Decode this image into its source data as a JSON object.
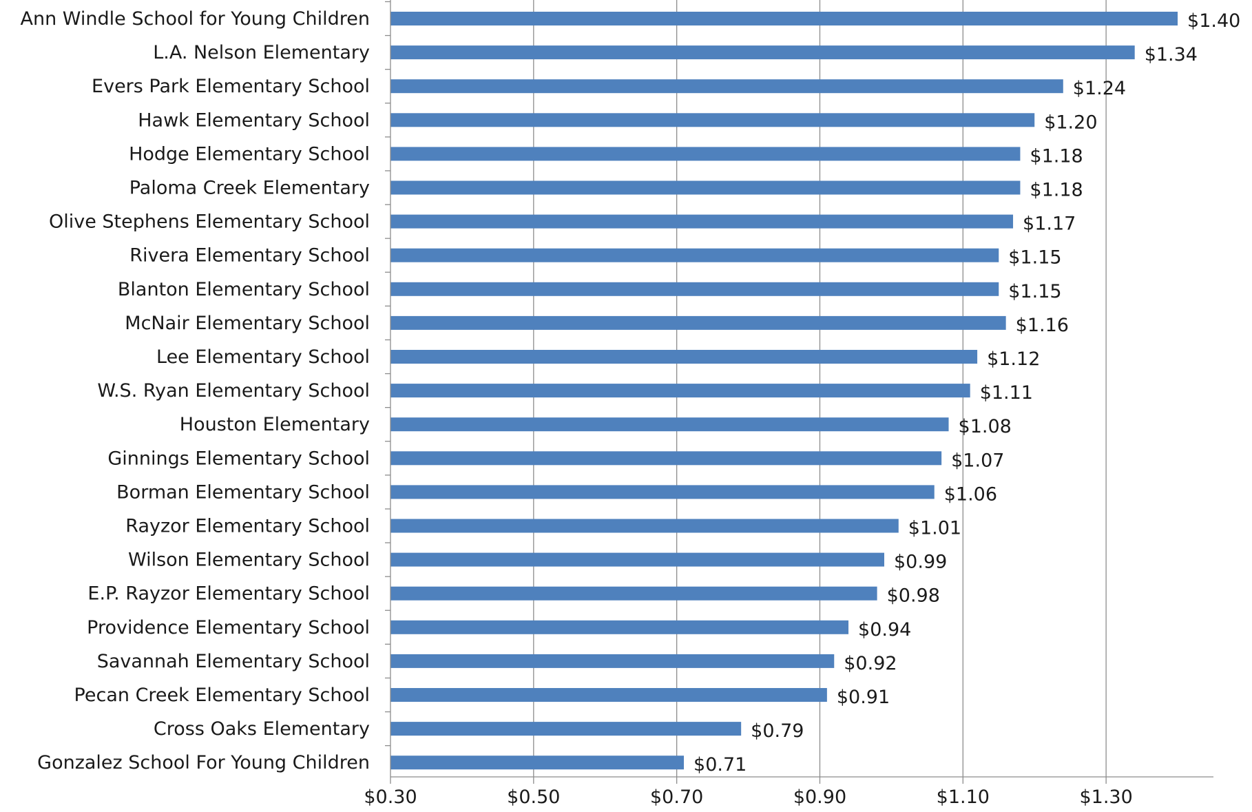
{
  "chart_data": {
    "type": "bar",
    "orientation": "horizontal",
    "title": "",
    "xlabel": "",
    "ylabel": "",
    "categories": [
      "Ann Windle School for Young Children",
      "L.A. Nelson Elementary",
      "Evers Park Elementary School",
      "Hawk Elementary School",
      "Hodge Elementary School",
      "Paloma Creek Elementary",
      "Olive Stephens Elementary School",
      "Rivera Elementary School",
      "Blanton Elementary School",
      "McNair Elementary School",
      "Lee Elementary School",
      "W.S. Ryan Elementary School",
      "Houston Elementary",
      "Ginnings Elementary School",
      "Borman Elementary School",
      "Rayzor Elementary School",
      "Wilson Elementary School",
      "E.P. Rayzor Elementary School",
      "Providence Elementary School",
      "Savannah Elementary School",
      "Pecan Creek Elementary School",
      "Cross Oaks Elementary",
      "Gonzalez School For Young Children"
    ],
    "values": [
      1.4,
      1.34,
      1.24,
      1.2,
      1.18,
      1.18,
      1.17,
      1.15,
      1.15,
      1.16,
      1.12,
      1.11,
      1.08,
      1.07,
      1.06,
      1.01,
      0.99,
      0.98,
      0.94,
      0.92,
      0.91,
      0.79,
      0.71
    ],
    "value_labels": [
      "$1.40",
      "$1.34",
      "$1.24",
      "$1.20",
      "$1.18",
      "$1.18",
      "$1.17",
      "$1.15",
      "$1.15",
      "$1.16",
      "$1.12",
      "$1.11",
      "$1.08",
      "$1.07",
      "$1.06",
      "$1.01",
      "$0.99",
      "$0.98",
      "$0.94",
      "$0.92",
      "$0.91",
      "$0.79",
      "$0.71"
    ],
    "xlim": [
      0.3,
      1.45
    ],
    "xticks": [
      0.3,
      0.5,
      0.7,
      0.9,
      1.1,
      1.3
    ],
    "xtick_labels": [
      "$0.30",
      "$0.50",
      "$0.70",
      "$0.90",
      "$1.10",
      "$1.30"
    ],
    "grid": "vertical",
    "legend": "none",
    "colors": {
      "bar": "#4f81bd"
    }
  }
}
